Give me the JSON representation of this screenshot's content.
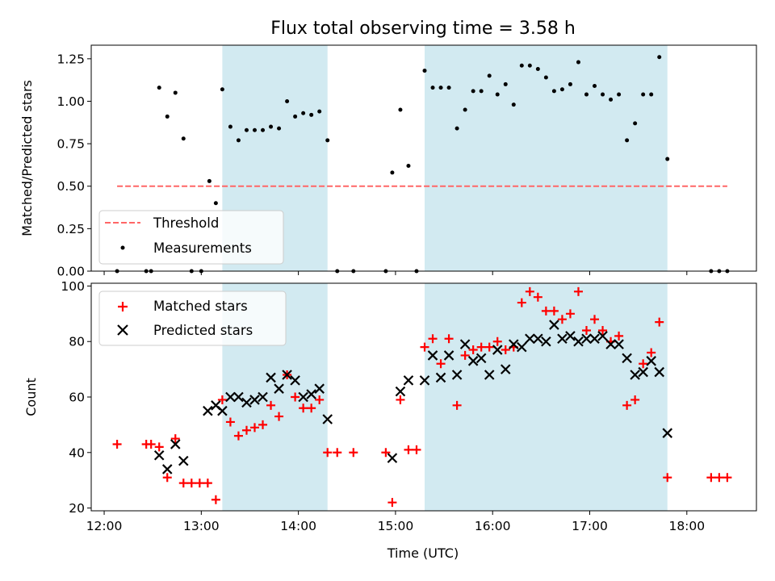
{
  "figure": {
    "title": "Flux total observing time = 3.58 h"
  },
  "colors": {
    "shade": "#add8e6",
    "threshold": "#ff6666",
    "measurements": "#000000",
    "matched": "#ff0000",
    "predicted": "#000000"
  },
  "chart_data": [
    {
      "type": "scatter",
      "title": "Flux total observing time = 3.58 h",
      "ylabel": "Matched/Predicted stars",
      "xlabel": "",
      "x_axis": "time",
      "xlim": [
        "11:52",
        "18:43"
      ],
      "ylim": [
        0,
        1.33
      ],
      "yticks": [
        "0.00",
        "0.25",
        "0.50",
        "0.75",
        "1.00",
        "1.25"
      ],
      "shaded_intervals": [
        [
          "13:13",
          "14:18"
        ],
        [
          "15:18",
          "17:48"
        ]
      ],
      "legend": {
        "placement": "lower-left",
        "entries": [
          "Threshold",
          "Measurements"
        ]
      },
      "series": [
        {
          "name": "Threshold",
          "type": "line",
          "style": "dashed",
          "x": [
            "12:08",
            "18:25"
          ],
          "y": [
            0.5,
            0.5
          ]
        },
        {
          "name": "Measurements",
          "type": "scatter",
          "points": [
            [
              "12:08",
              0.0
            ],
            [
              "12:26",
              0.0
            ],
            [
              "12:29",
              0.0
            ],
            [
              "12:34",
              1.08
            ],
            [
              "12:39",
              0.91
            ],
            [
              "12:44",
              1.05
            ],
            [
              "12:49",
              0.78
            ],
            [
              "12:54",
              0.0
            ],
            [
              "13:00",
              0.0
            ],
            [
              "13:05",
              0.53
            ],
            [
              "13:09",
              0.4
            ],
            [
              "13:13",
              1.07
            ],
            [
              "13:18",
              0.85
            ],
            [
              "13:23",
              0.77
            ],
            [
              "13:28",
              0.83
            ],
            [
              "13:33",
              0.83
            ],
            [
              "13:38",
              0.83
            ],
            [
              "13:43",
              0.85
            ],
            [
              "13:48",
              0.84
            ],
            [
              "13:53",
              1.0
            ],
            [
              "13:58",
              0.91
            ],
            [
              "14:03",
              0.93
            ],
            [
              "14:08",
              0.92
            ],
            [
              "14:13",
              0.94
            ],
            [
              "14:18",
              0.77
            ],
            [
              "14:24",
              0.0
            ],
            [
              "14:34",
              0.0
            ],
            [
              "14:54",
              0.0
            ],
            [
              "14:58",
              0.58
            ],
            [
              "15:03",
              0.95
            ],
            [
              "15:08",
              0.62
            ],
            [
              "15:13",
              0.0
            ],
            [
              "15:18",
              1.18
            ],
            [
              "15:23",
              1.08
            ],
            [
              "15:28",
              1.08
            ],
            [
              "15:33",
              1.08
            ],
            [
              "15:38",
              0.84
            ],
            [
              "15:43",
              0.95
            ],
            [
              "15:48",
              1.06
            ],
            [
              "15:53",
              1.06
            ],
            [
              "15:58",
              1.15
            ],
            [
              "16:03",
              1.04
            ],
            [
              "16:08",
              1.1
            ],
            [
              "16:13",
              0.98
            ],
            [
              "16:18",
              1.21
            ],
            [
              "16:23",
              1.21
            ],
            [
              "16:28",
              1.19
            ],
            [
              "16:33",
              1.14
            ],
            [
              "16:38",
              1.06
            ],
            [
              "16:43",
              1.07
            ],
            [
              "16:48",
              1.1
            ],
            [
              "16:53",
              1.23
            ],
            [
              "16:58",
              1.04
            ],
            [
              "17:03",
              1.09
            ],
            [
              "17:08",
              1.04
            ],
            [
              "17:13",
              1.01
            ],
            [
              "17:18",
              1.04
            ],
            [
              "17:23",
              0.77
            ],
            [
              "17:28",
              0.87
            ],
            [
              "17:33",
              1.04
            ],
            [
              "17:38",
              1.04
            ],
            [
              "17:43",
              1.26
            ],
            [
              "17:48",
              0.66
            ],
            [
              "18:15",
              0.0
            ],
            [
              "18:20",
              0.0
            ],
            [
              "18:25",
              0.0
            ]
          ]
        }
      ]
    },
    {
      "type": "scatter",
      "title": "",
      "xlabel": "Time (UTC)",
      "ylabel": "Count",
      "x_axis": "time",
      "xlim": [
        "11:52",
        "18:43"
      ],
      "ylim": [
        19,
        101
      ],
      "xticks": [
        "12:00",
        "13:00",
        "14:00",
        "15:00",
        "16:00",
        "17:00",
        "18:00"
      ],
      "yticks": [
        "20",
        "40",
        "60",
        "80",
        "100"
      ],
      "shaded_intervals": [
        [
          "13:13",
          "14:18"
        ],
        [
          "15:18",
          "17:48"
        ]
      ],
      "legend": {
        "placement": "upper-left",
        "entries": [
          "Matched stars",
          "Predicted stars"
        ]
      },
      "series": [
        {
          "name": "Matched stars",
          "marker": "plus",
          "points": [
            [
              "12:08",
              43
            ],
            [
              "12:26",
              43
            ],
            [
              "12:29",
              43
            ],
            [
              "12:34",
              42
            ],
            [
              "12:39",
              31
            ],
            [
              "12:44",
              45
            ],
            [
              "12:49",
              29
            ],
            [
              "12:54",
              29
            ],
            [
              "12:59",
              29
            ],
            [
              "13:04",
              29
            ],
            [
              "13:09",
              23
            ],
            [
              "13:13",
              59
            ],
            [
              "13:18",
              51
            ],
            [
              "13:23",
              46
            ],
            [
              "13:28",
              48
            ],
            [
              "13:33",
              49
            ],
            [
              "13:38",
              50
            ],
            [
              "13:43",
              57
            ],
            [
              "13:48",
              53
            ],
            [
              "13:53",
              68
            ],
            [
              "13:58",
              60
            ],
            [
              "14:03",
              56
            ],
            [
              "14:08",
              56
            ],
            [
              "14:13",
              59
            ],
            [
              "14:18",
              40
            ],
            [
              "14:24",
              40
            ],
            [
              "14:34",
              40
            ],
            [
              "14:54",
              40
            ],
            [
              "14:58",
              22
            ],
            [
              "15:03",
              59
            ],
            [
              "15:08",
              41
            ],
            [
              "15:13",
              41
            ],
            [
              "15:18",
              78
            ],
            [
              "15:23",
              81
            ],
            [
              "15:28",
              72
            ],
            [
              "15:33",
              81
            ],
            [
              "15:38",
              57
            ],
            [
              "15:43",
              75
            ],
            [
              "15:48",
              77
            ],
            [
              "15:53",
              78
            ],
            [
              "15:58",
              78
            ],
            [
              "16:03",
              80
            ],
            [
              "16:08",
              77
            ],
            [
              "16:13",
              78
            ],
            [
              "16:18",
              94
            ],
            [
              "16:23",
              98
            ],
            [
              "16:28",
              96
            ],
            [
              "16:33",
              91
            ],
            [
              "16:38",
              91
            ],
            [
              "16:43",
              88
            ],
            [
              "16:48",
              90
            ],
            [
              "16:53",
              98
            ],
            [
              "16:58",
              84
            ],
            [
              "17:03",
              88
            ],
            [
              "17:08",
              84
            ],
            [
              "17:13",
              80
            ],
            [
              "17:18",
              82
            ],
            [
              "17:23",
              57
            ],
            [
              "17:28",
              59
            ],
            [
              "17:33",
              72
            ],
            [
              "17:38",
              76
            ],
            [
              "17:43",
              87
            ],
            [
              "17:48",
              31
            ],
            [
              "18:15",
              31
            ],
            [
              "18:20",
              31
            ],
            [
              "18:25",
              31
            ]
          ]
        },
        {
          "name": "Predicted stars",
          "marker": "x",
          "points": [
            [
              "12:34",
              39
            ],
            [
              "12:39",
              34
            ],
            [
              "12:44",
              43
            ],
            [
              "12:49",
              37
            ],
            [
              "13:04",
              55
            ],
            [
              "13:09",
              57
            ],
            [
              "13:13",
              55
            ],
            [
              "13:18",
              60
            ],
            [
              "13:23",
              60
            ],
            [
              "13:28",
              58
            ],
            [
              "13:33",
              59
            ],
            [
              "13:38",
              60
            ],
            [
              "13:43",
              67
            ],
            [
              "13:48",
              63
            ],
            [
              "13:53",
              68
            ],
            [
              "13:58",
              66
            ],
            [
              "14:03",
              60
            ],
            [
              "14:08",
              61
            ],
            [
              "14:13",
              63
            ],
            [
              "14:18",
              52
            ],
            [
              "14:58",
              38
            ],
            [
              "15:03",
              62
            ],
            [
              "15:08",
              66
            ],
            [
              "15:18",
              66
            ],
            [
              "15:23",
              75
            ],
            [
              "15:28",
              67
            ],
            [
              "15:33",
              75
            ],
            [
              "15:38",
              68
            ],
            [
              "15:43",
              79
            ],
            [
              "15:48",
              73
            ],
            [
              "15:53",
              74
            ],
            [
              "15:58",
              68
            ],
            [
              "16:03",
              77
            ],
            [
              "16:08",
              70
            ],
            [
              "16:13",
              79
            ],
            [
              "16:18",
              78
            ],
            [
              "16:23",
              81
            ],
            [
              "16:28",
              81
            ],
            [
              "16:33",
              80
            ],
            [
              "16:38",
              86
            ],
            [
              "16:43",
              81
            ],
            [
              "16:48",
              82
            ],
            [
              "16:53",
              80
            ],
            [
              "16:58",
              81
            ],
            [
              "17:03",
              81
            ],
            [
              "17:08",
              82
            ],
            [
              "17:13",
              79
            ],
            [
              "17:18",
              79
            ],
            [
              "17:23",
              74
            ],
            [
              "17:28",
              68
            ],
            [
              "17:33",
              69
            ],
            [
              "17:38",
              73
            ],
            [
              "17:43",
              69
            ],
            [
              "17:48",
              47
            ]
          ]
        }
      ]
    }
  ]
}
